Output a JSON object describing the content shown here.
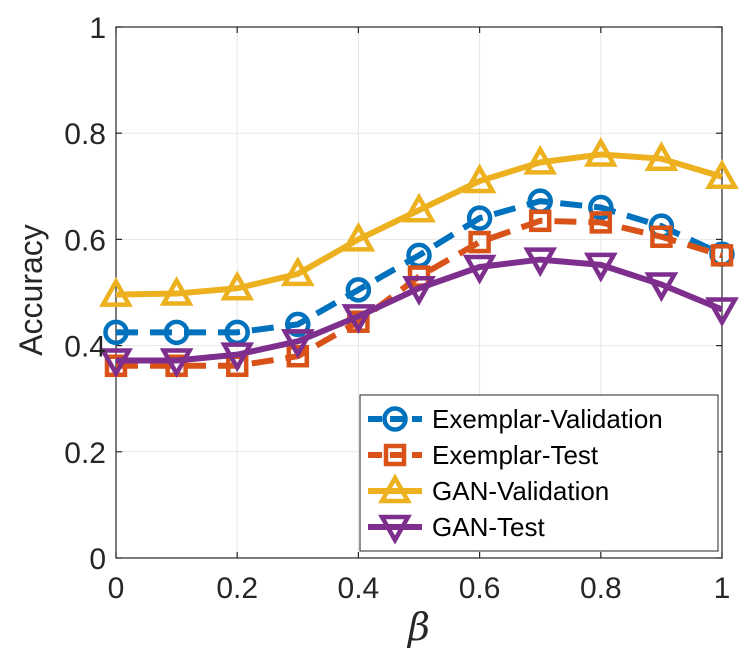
{
  "chart_data": {
    "type": "line",
    "title": "",
    "xlabel": "β",
    "ylabel": "Accuracy",
    "xlim": [
      0,
      1
    ],
    "ylim": [
      0,
      1
    ],
    "grid": true,
    "x": [
      0,
      0.1,
      0.2,
      0.3,
      0.4,
      0.5,
      0.6,
      0.7,
      0.8,
      0.9,
      1.0
    ],
    "xticks": [
      0,
      0.2,
      0.4,
      0.6,
      0.8,
      1
    ],
    "xtick_labels": [
      "0",
      "0.2",
      "0.4",
      "0.6",
      "0.8",
      "1"
    ],
    "yticks": [
      0,
      0.2,
      0.4,
      0.6,
      0.8,
      1
    ],
    "ytick_labels": [
      "0",
      "0.2",
      "0.4",
      "0.6",
      "0.8",
      "1"
    ],
    "legend_position": "bottom-right",
    "series": [
      {
        "name": "Exemplar-Validation",
        "color": "#0072BD",
        "marker": "circle",
        "line": "dashed",
        "values": [
          0.425,
          0.425,
          0.425,
          0.44,
          0.505,
          0.57,
          0.64,
          0.672,
          0.66,
          0.625,
          0.572
        ]
      },
      {
        "name": "Exemplar-Test",
        "color": "#D95319",
        "marker": "square",
        "line": "dashed",
        "values": [
          0.362,
          0.362,
          0.362,
          0.38,
          0.445,
          0.53,
          0.595,
          0.635,
          0.632,
          0.605,
          0.57
        ]
      },
      {
        "name": "GAN-Validation",
        "color": "#EDB120",
        "marker": "triangle-up",
        "line": "solid",
        "values": [
          0.496,
          0.498,
          0.508,
          0.535,
          0.6,
          0.655,
          0.71,
          0.745,
          0.76,
          0.752,
          0.718
        ]
      },
      {
        "name": "GAN-Test",
        "color": "#7E2F8E",
        "marker": "triangle-down",
        "line": "solid",
        "values": [
          0.372,
          0.372,
          0.383,
          0.408,
          0.455,
          0.508,
          0.548,
          0.562,
          0.552,
          0.515,
          0.468
        ]
      }
    ]
  }
}
